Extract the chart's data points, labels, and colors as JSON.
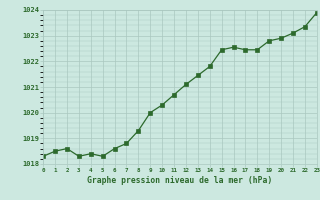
{
  "x": [
    0,
    1,
    2,
    3,
    4,
    5,
    6,
    7,
    8,
    9,
    10,
    11,
    12,
    13,
    14,
    15,
    16,
    17,
    18,
    19,
    20,
    21,
    22,
    23
  ],
  "y": [
    1018.3,
    1018.5,
    1018.6,
    1018.3,
    1018.4,
    1018.3,
    1018.6,
    1018.8,
    1019.3,
    1020.0,
    1020.3,
    1020.7,
    1021.1,
    1021.45,
    1021.8,
    1022.45,
    1022.55,
    1022.45,
    1022.45,
    1022.8,
    1022.9,
    1023.1,
    1023.35,
    1023.9
  ],
  "ylim": [
    1018.0,
    1024.0
  ],
  "yticks": [
    1018,
    1019,
    1020,
    1021,
    1022,
    1023,
    1024
  ],
  "xlim": [
    0,
    23
  ],
  "xticks": [
    0,
    1,
    2,
    3,
    4,
    5,
    6,
    7,
    8,
    9,
    10,
    11,
    12,
    13,
    14,
    15,
    16,
    17,
    18,
    19,
    20,
    21,
    22,
    23
  ],
  "line_color": "#2d6a2d",
  "marker_color": "#2d6a2d",
  "bg_color": "#cce8e0",
  "grid_color": "#aac8c0",
  "xlabel": "Graphe pression niveau de la mer (hPa)",
  "xlabel_color": "#2d6a2d"
}
